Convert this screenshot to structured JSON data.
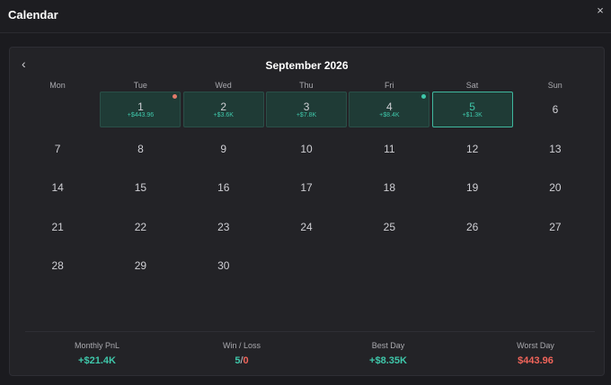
{
  "header": {
    "title": "Calendar",
    "close_icon": "×"
  },
  "calendar": {
    "prev_icon": "‹",
    "month_title": "September 2026",
    "weekdays": [
      "Mon",
      "Tue",
      "Wed",
      "Thu",
      "Fri",
      "Sat",
      "Sun"
    ],
    "days": [
      {
        "num": "1",
        "pnl": "+$443.96",
        "dot": "#e27a6a"
      },
      {
        "num": "2",
        "pnl": "+$3.6K"
      },
      {
        "num": "3",
        "pnl": "+$7.8K"
      },
      {
        "num": "4",
        "pnl": "+$8.4K",
        "dot": "#3fc7aa"
      },
      {
        "num": "5",
        "pnl": "+$1.3K",
        "selected": true
      },
      {
        "num": "6"
      },
      {
        "num": "7"
      },
      {
        "num": "8"
      },
      {
        "num": "9"
      },
      {
        "num": "10"
      },
      {
        "num": "11"
      },
      {
        "num": "12"
      },
      {
        "num": "13"
      },
      {
        "num": "14"
      },
      {
        "num": "15"
      },
      {
        "num": "16"
      },
      {
        "num": "17"
      },
      {
        "num": "18"
      },
      {
        "num": "19"
      },
      {
        "num": "20"
      },
      {
        "num": "21"
      },
      {
        "num": "22"
      },
      {
        "num": "23"
      },
      {
        "num": "24"
      },
      {
        "num": "25"
      },
      {
        "num": "26"
      },
      {
        "num": "27"
      },
      {
        "num": "28"
      },
      {
        "num": "29"
      },
      {
        "num": "30"
      }
    ],
    "first_day_column": 1
  },
  "stats": {
    "monthly_pnl_label": "Monthly PnL",
    "monthly_pnl_value": "+$21.4K",
    "win_loss_label": "Win / Loss",
    "wins": "5",
    "slash": "/",
    "losses": "0",
    "best_day_label": "Best Day",
    "best_day_value": "+$8.35K",
    "worst_day_label": "Worst Day",
    "worst_day_value": "$443.96"
  },
  "colors": {
    "positive": "#3fc7aa",
    "negative": "#f0645a",
    "selected_border": "#3fb89f"
  }
}
